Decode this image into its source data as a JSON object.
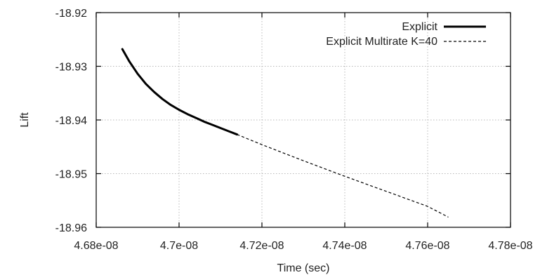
{
  "chart_data": {
    "type": "line",
    "title": "",
    "xlabel": "Time (sec)",
    "ylabel": "Lift",
    "xlim": [
      4.68e-08,
      4.78e-08
    ],
    "ylim": [
      -18.96,
      -18.92
    ],
    "xticks": [
      4.68e-08,
      4.7e-08,
      4.72e-08,
      4.74e-08,
      4.76e-08,
      4.78e-08
    ],
    "xtick_labels": [
      "4.68e-08",
      "4.7e-08",
      "4.72e-08",
      "4.74e-08",
      "4.76e-08",
      "4.78e-08"
    ],
    "yticks": [
      -18.96,
      -18.95,
      -18.94,
      -18.93,
      -18.92
    ],
    "ytick_labels": [
      "-18.96",
      "-18.95",
      "-18.94",
      "-18.93",
      "-18.92"
    ],
    "grid": true,
    "legend_position": "top-right",
    "series": [
      {
        "name": "Explicit",
        "style": "solid",
        "color": "#000000",
        "x": [
          4.6863e-08,
          4.688e-08,
          4.69e-08,
          4.692e-08,
          4.694e-08,
          4.696e-08,
          4.698e-08,
          4.7e-08,
          4.702e-08,
          4.704e-08,
          4.706e-08,
          4.708e-08,
          4.71e-08,
          4.712e-08,
          4.714e-08
        ],
        "y": [
          -18.9268,
          -18.9291,
          -18.9314,
          -18.9333,
          -18.9348,
          -18.9361,
          -18.9372,
          -18.9381,
          -18.9389,
          -18.9396,
          -18.9403,
          -18.9409,
          -18.9415,
          -18.9421,
          -18.9427
        ]
      },
      {
        "name": "Explicit Multirate K=40",
        "style": "dashed",
        "color": "#000000",
        "x": [
          4.714e-08,
          4.72e-08,
          4.73e-08,
          4.74e-08,
          4.75e-08,
          4.76e-08,
          4.765e-08
        ],
        "y": [
          -18.9427,
          -18.9446,
          -18.9476,
          -18.9505,
          -18.9533,
          -18.9561,
          -18.9581
        ]
      }
    ]
  }
}
